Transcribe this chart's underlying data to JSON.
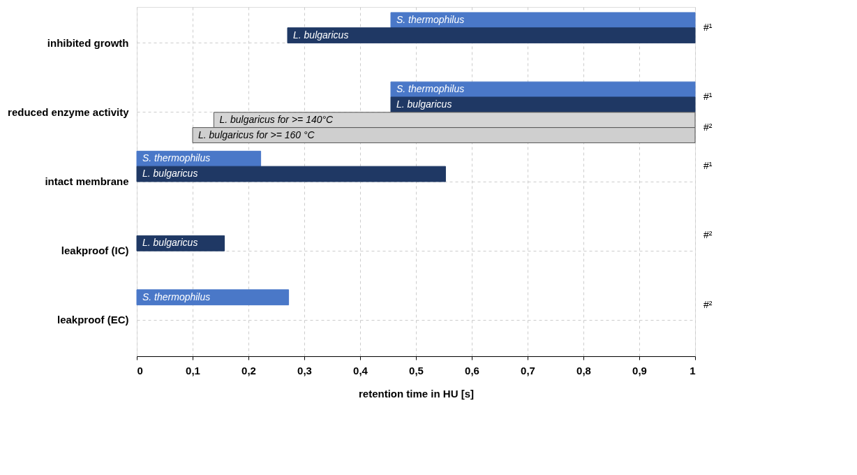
{
  "chart_data": {
    "type": "bar",
    "orientation": "horizontal",
    "xlabel": "retention time in HU [s]",
    "categories": [
      "inhibited growth",
      "reduced enzyme activity",
      "intact membrane",
      "leakproof (IC)",
      "leakproof (EC)"
    ],
    "series": [
      {
        "name": "S. thermophilus",
        "color": "#4a78c8",
        "values": [
          0.545,
          0.545,
          0.222,
          null,
          0.272
        ],
        "base": [
          0.455,
          0.455,
          0,
          null,
          0
        ]
      },
      {
        "name": "L. bulgaricus",
        "color": "#1f3864",
        "values": [
          0.73,
          0.545,
          0.553,
          0.157,
          null
        ],
        "base": [
          0.27,
          0.455,
          0,
          0,
          null
        ]
      },
      {
        "name": "L. bulgaricus for >= 140°C",
        "color": "#d4d4d4",
        "values": [
          null,
          0.862,
          null,
          null,
          null
        ],
        "base": [
          null,
          0.138,
          null,
          null,
          null
        ]
      },
      {
        "name": "L. bulgaricus for >= 160 °C",
        "color": "#cfcfcf",
        "values": [
          null,
          0.9,
          null,
          null,
          null
        ],
        "base": [
          null,
          0.1,
          null,
          null,
          null
        ]
      }
    ],
    "xlim": [
      0,
      1
    ],
    "xticks": [
      0,
      {
        "value": 0.1,
        "label": "0,1"
      },
      {
        "value": 0.2,
        "label": "0,2"
      },
      {
        "value": 0.3,
        "label": "0,3"
      },
      {
        "value": 0.4,
        "label": "0,4"
      },
      {
        "value": 0.5,
        "label": "0,5"
      },
      {
        "value": 0.6,
        "label": "0,6"
      },
      {
        "value": 0.7,
        "label": "0,7"
      },
      {
        "value": 0.8,
        "label": "0,8"
      },
      {
        "value": 0.9,
        "label": "0,9"
      },
      1
    ],
    "annotations": [
      "#¹",
      "#¹",
      "#²",
      "#¹",
      "#²",
      "#²"
    ],
    "grid": true,
    "legend": false
  }
}
